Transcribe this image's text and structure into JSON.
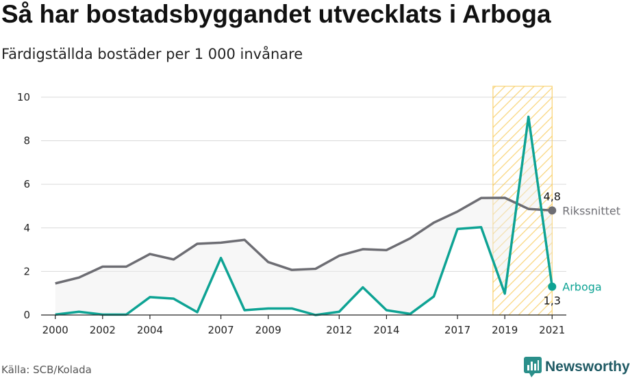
{
  "title": "Så har bostadsbyggandet utvecklats i Arboga",
  "subtitle": "Färdigställda bostäder per 1 000 invånare",
  "source": "Källa: SCB/Kolada",
  "brand": "Newsworthy",
  "chart_data": {
    "type": "line",
    "x": [
      2000,
      2001,
      2002,
      2003,
      2004,
      2005,
      2006,
      2007,
      2008,
      2009,
      2010,
      2011,
      2012,
      2013,
      2014,
      2015,
      2016,
      2017,
      2018,
      2019,
      2020,
      2021
    ],
    "x_ticks": [
      2000,
      2002,
      2004,
      2007,
      2009,
      2012,
      2014,
      2017,
      2019,
      2021
    ],
    "y_ticks": [
      0,
      2,
      4,
      6,
      8,
      10
    ],
    "ylim": [
      0,
      10.5
    ],
    "xlim": [
      1999.4,
      2021.6
    ],
    "series": [
      {
        "name": "Rikssnittet",
        "color": "#6d6d73",
        "values": [
          1.45,
          1.72,
          2.22,
          2.22,
          2.8,
          2.55,
          3.27,
          3.32,
          3.45,
          2.43,
          2.07,
          2.12,
          2.72,
          3.02,
          2.98,
          3.52,
          4.24,
          4.75,
          5.37,
          5.38,
          4.87,
          4.8
        ]
      },
      {
        "name": "Arboga",
        "color": "#0ea394",
        "values": [
          0.02,
          0.15,
          0.02,
          0.02,
          0.82,
          0.75,
          0.13,
          2.62,
          0.22,
          0.3,
          0.3,
          0.0,
          0.15,
          1.27,
          0.22,
          0.05,
          0.85,
          3.95,
          4.03,
          0.98,
          9.1,
          1.3
        ]
      }
    ],
    "end_labels": {
      "Rikssnittet": "4,8",
      "Arboga": "1,3"
    },
    "highlight": {
      "from": 2018.5,
      "to": 2021,
      "color": "#f7c74f"
    },
    "grid": true
  }
}
